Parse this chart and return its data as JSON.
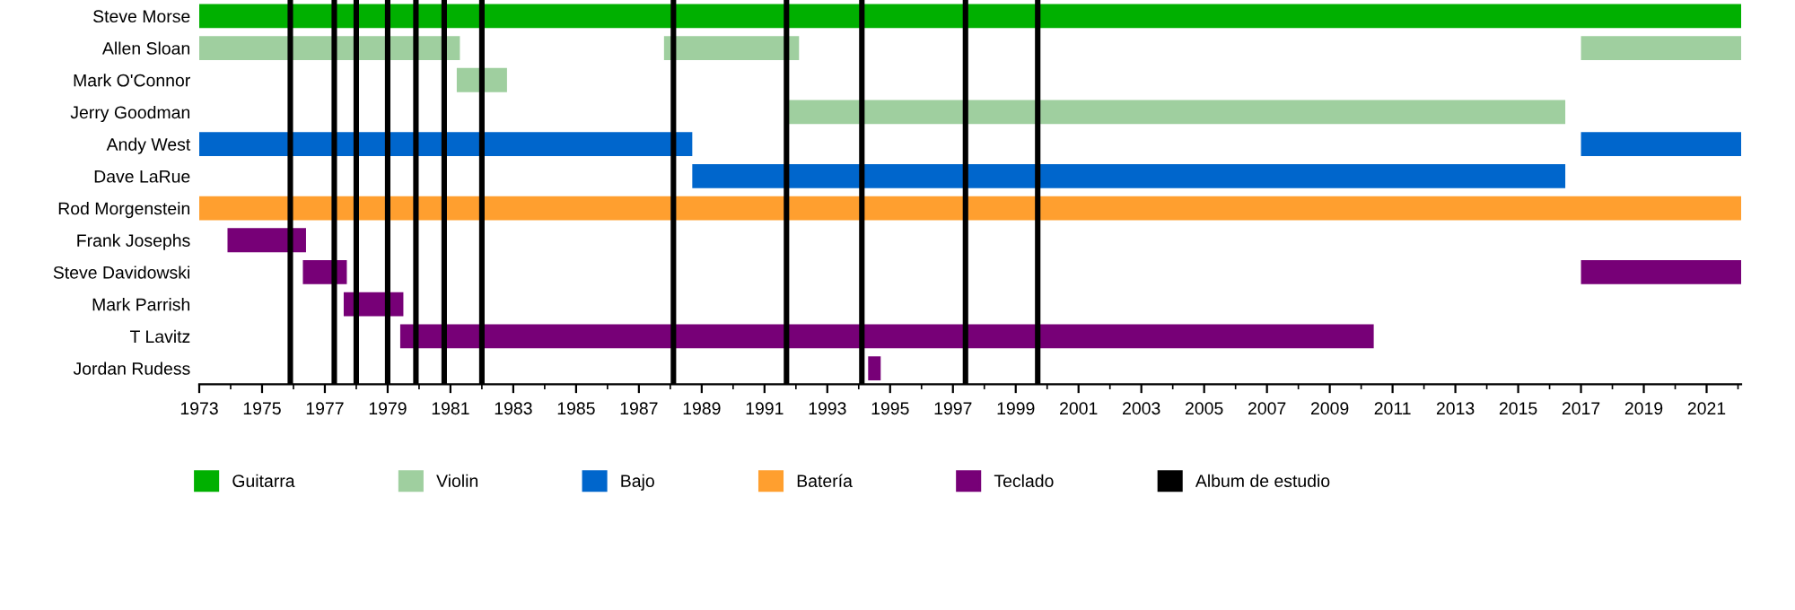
{
  "chart_data": {
    "type": "bar",
    "orientation": "horizontal",
    "categories": [
      "Steve Morse",
      "Allen Sloan",
      "Mark O'Connor",
      "Jerry Goodman",
      "Andy West",
      "Dave LaRue",
      "Rod Morgenstein",
      "Frank Josephs",
      "Steve Davidowski",
      "Mark Parrish",
      "T Lavitz",
      "Jordan Rudess"
    ],
    "series": [
      {
        "name": "Guitarra",
        "color": "#00b000",
        "base": [
          1973,
          null,
          null,
          null,
          null,
          null,
          null,
          null,
          null,
          null,
          null,
          null
        ],
        "values": [
          49.1,
          null,
          null,
          null,
          null,
          null,
          null,
          null,
          null,
          null,
          null,
          null
        ]
      },
      {
        "name": "Violin",
        "color": "#9fcf9f",
        "base": [
          null,
          1973,
          1981.2,
          1991.7,
          null,
          null,
          null,
          null,
          null,
          null,
          null,
          null
        ],
        "values": [
          null,
          8.3,
          1.6,
          24.8,
          null,
          null,
          null,
          null,
          null,
          null,
          null,
          null
        ]
      },
      {
        "color": "#9fcf9f",
        "base": [
          null,
          1987.8,
          null,
          null,
          null,
          null,
          null,
          null,
          null,
          null,
          null,
          null
        ],
        "values": [
          null,
          4.3,
          null,
          null,
          null,
          null,
          null,
          null,
          null,
          null,
          null,
          null
        ]
      },
      {
        "color": "#9fcf9f",
        "base": [
          null,
          2017.0,
          null,
          null,
          null,
          null,
          null,
          null,
          null,
          null,
          null,
          null
        ],
        "values": [
          null,
          5.1,
          null,
          null,
          null,
          null,
          null,
          null,
          null,
          null,
          null,
          null
        ]
      },
      {
        "name": "Bajo",
        "color": "#0066cc",
        "base": [
          null,
          null,
          null,
          null,
          1973,
          1988.7,
          null,
          null,
          null,
          null,
          null,
          null
        ],
        "values": [
          null,
          null,
          null,
          null,
          15.7,
          27.8,
          null,
          null,
          null,
          null,
          null,
          null
        ]
      },
      {
        "color": "#0066cc",
        "base": [
          null,
          null,
          null,
          null,
          2017.0,
          null,
          null,
          null,
          null,
          null,
          null,
          null
        ],
        "values": [
          null,
          null,
          null,
          null,
          5.1,
          null,
          null,
          null,
          null,
          null,
          null,
          null
        ]
      },
      {
        "name": "Batería",
        "color": "#ff9f2f",
        "base": [
          null,
          null,
          null,
          null,
          null,
          null,
          1973,
          null,
          null,
          null,
          null,
          null
        ],
        "values": [
          null,
          null,
          null,
          null,
          null,
          null,
          49.1,
          null,
          null,
          null,
          null,
          null
        ]
      },
      {
        "name": "Teclado",
        "color": "#770077",
        "base": [
          null,
          null,
          null,
          null,
          null,
          null,
          null,
          1973.9,
          1976.3,
          1977.6,
          1979.4,
          1994.3
        ],
        "values": [
          null,
          null,
          null,
          null,
          null,
          null,
          null,
          2.5,
          1.4,
          1.9,
          31.0,
          0.4
        ]
      },
      {
        "color": "#770077",
        "base": [
          null,
          null,
          null,
          null,
          null,
          null,
          null,
          null,
          2017.0,
          null,
          null,
          null
        ],
        "values": [
          null,
          null,
          null,
          null,
          null,
          null,
          null,
          null,
          5.1,
          null,
          null,
          null
        ]
      }
    ],
    "ref_lines": [
      {
        "axis": "x",
        "value": 1975.9,
        "label": "Album de estudio",
        "color": "#000000"
      },
      {
        "axis": "x",
        "value": 1977.3,
        "color": "#000000"
      },
      {
        "axis": "x",
        "value": 1978.0,
        "color": "#000000"
      },
      {
        "axis": "x",
        "value": 1979.0,
        "color": "#000000"
      },
      {
        "axis": "x",
        "value": 1979.9,
        "color": "#000000"
      },
      {
        "axis": "x",
        "value": 1980.8,
        "color": "#000000"
      },
      {
        "axis": "x",
        "value": 1982.0,
        "color": "#000000"
      },
      {
        "axis": "x",
        "value": 1988.1,
        "color": "#000000"
      },
      {
        "axis": "x",
        "value": 1991.7,
        "color": "#000000"
      },
      {
        "axis": "x",
        "value": 1994.1,
        "color": "#000000"
      },
      {
        "axis": "x",
        "value": 1997.4,
        "color": "#000000"
      },
      {
        "axis": "x",
        "value": 1999.7,
        "color": "#000000"
      }
    ],
    "xlim": [
      1973,
      2022.1
    ],
    "xticks": [
      1973,
      1975,
      1977,
      1979,
      1981,
      1983,
      1985,
      1987,
      1989,
      1991,
      1993,
      1995,
      1997,
      1999,
      2001,
      2003,
      2005,
      2007,
      2009,
      2011,
      2013,
      2015,
      2017,
      2019,
      2021
    ],
    "grid": false,
    "legend": "bottom"
  }
}
